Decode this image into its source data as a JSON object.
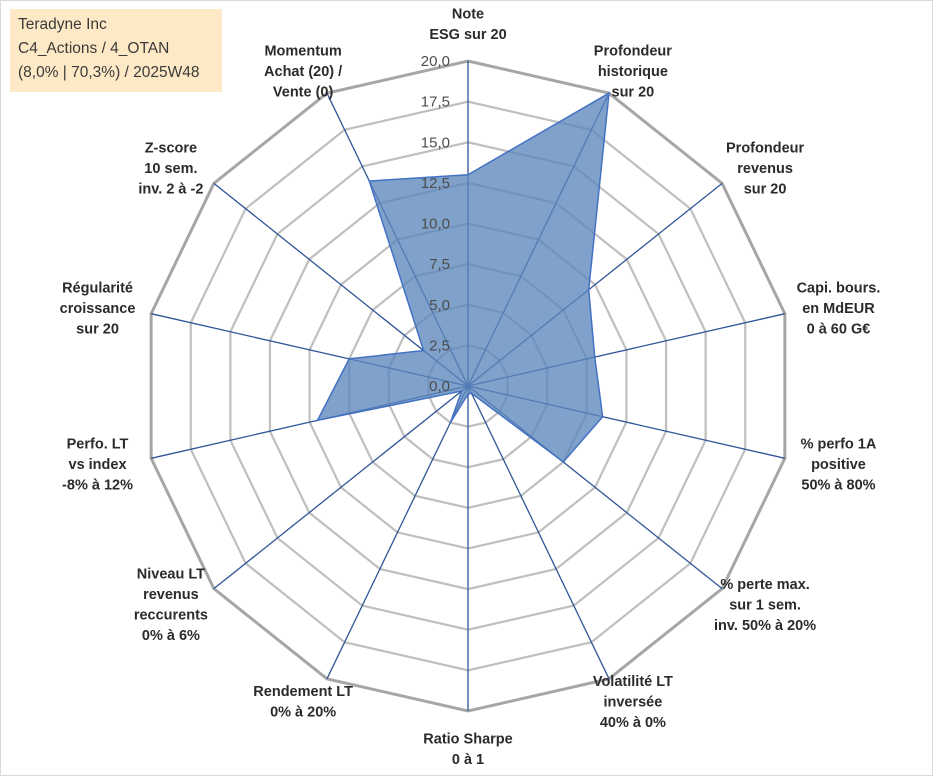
{
  "info_box": {
    "line1": "Teradyne Inc",
    "line2": "C4_Actions / 4_OTAN",
    "line3": "(8,0% | 70,3%) / 2025W48"
  },
  "colors": {
    "fill": "#5b87bb",
    "fill_opacity": 0.78,
    "stroke": "#4472c4",
    "axis_line": "#2f5597",
    "grid": "#bfbfbf",
    "outer_grid": "#a6a6a6",
    "info_box_bg": "#fde9c5"
  },
  "chart_data": {
    "type": "radar",
    "title": "",
    "rmin": 0,
    "rmax": 20,
    "grid_step": 2.5,
    "tick_labels": [
      "0,0",
      "2,5",
      "5,0",
      "7,5",
      "10,0",
      "12,5",
      "15,0",
      "17,5",
      "20,0"
    ],
    "axes": [
      [
        "Note",
        "ESG sur 20"
      ],
      [
        "Profondeur",
        "historique",
        "sur 20"
      ],
      [
        "Profondeur",
        "revenus",
        "sur 20"
      ],
      [
        "Capi. bours.",
        "en MdEUR",
        "0 à 60 G€"
      ],
      [
        "% perfo 1A",
        "positive",
        "50% à 80%"
      ],
      [
        "% perte max.",
        "sur 1 sem.",
        "inv. 50% à 20%"
      ],
      [
        "Volatilité LT",
        "inversée",
        "40% à 0%"
      ],
      [
        "Ratio Sharpe",
        "0 à 1"
      ],
      [
        "Rendement LT",
        "0% à 20%"
      ],
      [
        "Niveau LT",
        "revenus",
        "reccurents",
        "0% à 6%"
      ],
      [
        "Perfo. LT",
        "vs index",
        "-8% à 12%"
      ],
      [
        "Régularité",
        "croissance",
        "sur 20"
      ],
      [
        "Z-score",
        "10 sem.",
        "inv. 2 à -2"
      ],
      [
        "Momentum",
        "Achat (20) /",
        "Vente (0)"
      ]
    ],
    "series": [
      {
        "values": [
          13.0,
          20.0,
          9.5,
          8.0,
          8.5,
          7.5,
          0.5,
          0.5,
          2.5,
          0.5,
          9.5,
          7.5,
          3.5,
          14.0
        ]
      }
    ],
    "grid": true,
    "legend": "none"
  }
}
